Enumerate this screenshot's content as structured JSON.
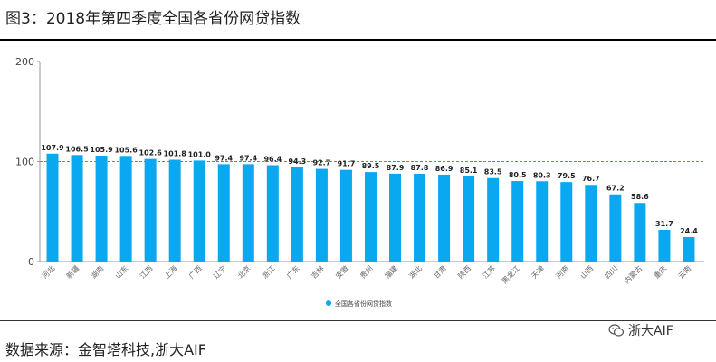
{
  "title": "图3：2018年第四季度全国各省份网贷指数",
  "source": "数据来源：金智塔科技,浙大AIF",
  "watermark": {
    "text": "浙大AIF",
    "icon": "wechat-icon"
  },
  "colors": {
    "bar": "#0aa8f0",
    "refline": "#e05555",
    "axis": "#999999"
  },
  "chart_data": {
    "type": "bar",
    "categories": [
      "河北",
      "新疆",
      "湖南",
      "山东",
      "江西",
      "上海",
      "广西",
      "辽宁",
      "北京",
      "浙江",
      "广东",
      "吉林",
      "安徽",
      "贵州",
      "福建",
      "湖北",
      "甘肃",
      "陕西",
      "江苏",
      "黑龙江",
      "天津",
      "河南",
      "山西",
      "四川",
      "内蒙古",
      "重庆",
      "云南"
    ],
    "series": [
      {
        "name": "全国各省份网贷指数",
        "values": [
          107.9,
          106.5,
          105.9,
          105.6,
          102.6,
          101.8,
          101.0,
          97.4,
          97.4,
          96.4,
          94.3,
          92.7,
          91.7,
          89.5,
          87.9,
          87.8,
          86.9,
          85.1,
          83.5,
          80.5,
          80.3,
          79.5,
          76.7,
          67.2,
          58.6,
          31.7,
          24.4
        ]
      }
    ],
    "value_labels": [
      "107.9",
      "106.5",
      "105.9",
      "105.6",
      "102.6",
      "101.8",
      "101.0",
      "97.4",
      "97.4",
      "96.4",
      "94.3",
      "92.7",
      "91.7",
      "89.5",
      "87.9",
      "87.8",
      "86.9",
      "85.1",
      "83.5",
      "80.5",
      "80.3",
      "79.5",
      "76.7",
      "67.2",
      "58.6",
      "31.7",
      "24.4"
    ],
    "yticks": [
      "0",
      "100",
      "200"
    ],
    "ylim": [
      0,
      200
    ],
    "reference_line": 100,
    "legend": "bottom-center",
    "grid": false
  }
}
